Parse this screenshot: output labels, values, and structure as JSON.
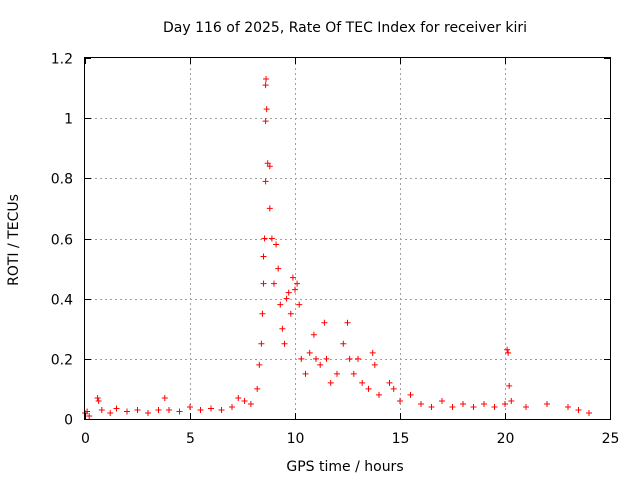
{
  "chart_data": {
    "type": "scatter",
    "title": "Day 116 of 2025, Rate Of TEC Index for receiver kiri",
    "xlabel": "GPS time / hours",
    "ylabel": "ROTI / TECUs",
    "xlim": [
      0,
      25
    ],
    "ylim": [
      0,
      1.2
    ],
    "xticks": [
      0,
      5,
      10,
      15,
      20,
      25
    ],
    "xtick_labels": [
      "0",
      "5",
      "10",
      "15",
      "20",
      "25"
    ],
    "yticks": [
      0,
      0.2,
      0.4,
      0.6,
      0.8,
      1.0,
      1.2
    ],
    "ytick_labels": [
      "0",
      "0.2",
      "0.4",
      "0.6",
      "0.8",
      "1",
      "1.2"
    ],
    "grid": true,
    "legend": "none",
    "marker": "plus",
    "color": "#ff0000",
    "series": [
      {
        "points": [
          [
            0.0,
            0.02
          ],
          [
            0.1,
            0.025
          ],
          [
            0.2,
            0.01
          ],
          [
            0.6,
            0.07
          ],
          [
            0.65,
            0.06
          ],
          [
            0.8,
            0.03
          ],
          [
            1.2,
            0.02
          ],
          [
            1.5,
            0.035
          ],
          [
            2.0,
            0.025
          ],
          [
            2.5,
            0.03
          ],
          [
            3.0,
            0.02
          ],
          [
            3.5,
            0.03
          ],
          [
            3.8,
            0.07
          ],
          [
            4.0,
            0.03
          ],
          [
            4.5,
            0.025
          ],
          [
            5.0,
            0.04
          ],
          [
            5.5,
            0.03
          ],
          [
            6.0,
            0.035
          ],
          [
            6.5,
            0.03
          ],
          [
            7.0,
            0.04
          ],
          [
            7.3,
            0.07
          ],
          [
            7.6,
            0.06
          ],
          [
            7.9,
            0.05
          ],
          [
            8.2,
            0.1
          ],
          [
            8.3,
            0.18
          ],
          [
            8.4,
            0.25
          ],
          [
            8.45,
            0.35
          ],
          [
            8.5,
            0.45
          ],
          [
            8.5,
            0.54
          ],
          [
            8.55,
            0.6
          ],
          [
            8.6,
            0.79
          ],
          [
            8.6,
            0.99
          ],
          [
            8.6,
            1.11
          ],
          [
            8.62,
            1.13
          ],
          [
            8.65,
            1.03
          ],
          [
            8.7,
            0.85
          ],
          [
            8.8,
            0.84
          ],
          [
            8.8,
            0.7
          ],
          [
            8.9,
            0.6
          ],
          [
            9.0,
            0.45
          ],
          [
            9.1,
            0.58
          ],
          [
            9.2,
            0.5
          ],
          [
            9.3,
            0.38
          ],
          [
            9.4,
            0.3
          ],
          [
            9.5,
            0.25
          ],
          [
            9.6,
            0.4
          ],
          [
            9.7,
            0.42
          ],
          [
            9.8,
            0.35
          ],
          [
            9.9,
            0.47
          ],
          [
            10.0,
            0.43
          ],
          [
            10.1,
            0.45
          ],
          [
            10.2,
            0.38
          ],
          [
            10.3,
            0.2
          ],
          [
            10.5,
            0.15
          ],
          [
            10.7,
            0.22
          ],
          [
            10.9,
            0.28
          ],
          [
            11.0,
            0.2
          ],
          [
            11.2,
            0.18
          ],
          [
            11.4,
            0.32
          ],
          [
            11.5,
            0.2
          ],
          [
            11.7,
            0.12
          ],
          [
            12.0,
            0.15
          ],
          [
            12.3,
            0.25
          ],
          [
            12.5,
            0.32
          ],
          [
            12.6,
            0.2
          ],
          [
            12.8,
            0.15
          ],
          [
            13.0,
            0.2
          ],
          [
            13.2,
            0.12
          ],
          [
            13.5,
            0.1
          ],
          [
            13.7,
            0.22
          ],
          [
            13.8,
            0.18
          ],
          [
            14.0,
            0.08
          ],
          [
            14.5,
            0.12
          ],
          [
            14.7,
            0.1
          ],
          [
            15.0,
            0.06
          ],
          [
            15.5,
            0.08
          ],
          [
            16.0,
            0.05
          ],
          [
            16.5,
            0.04
          ],
          [
            17.0,
            0.06
          ],
          [
            17.5,
            0.04
          ],
          [
            18.0,
            0.05
          ],
          [
            18.5,
            0.04
          ],
          [
            19.0,
            0.05
          ],
          [
            19.5,
            0.04
          ],
          [
            20.0,
            0.05
          ],
          [
            20.1,
            0.23
          ],
          [
            20.15,
            0.22
          ],
          [
            20.2,
            0.11
          ],
          [
            20.3,
            0.06
          ],
          [
            21.0,
            0.04
          ],
          [
            22.0,
            0.05
          ],
          [
            23.0,
            0.04
          ],
          [
            23.5,
            0.03
          ],
          [
            24.0,
            0.02
          ]
        ]
      }
    ]
  }
}
